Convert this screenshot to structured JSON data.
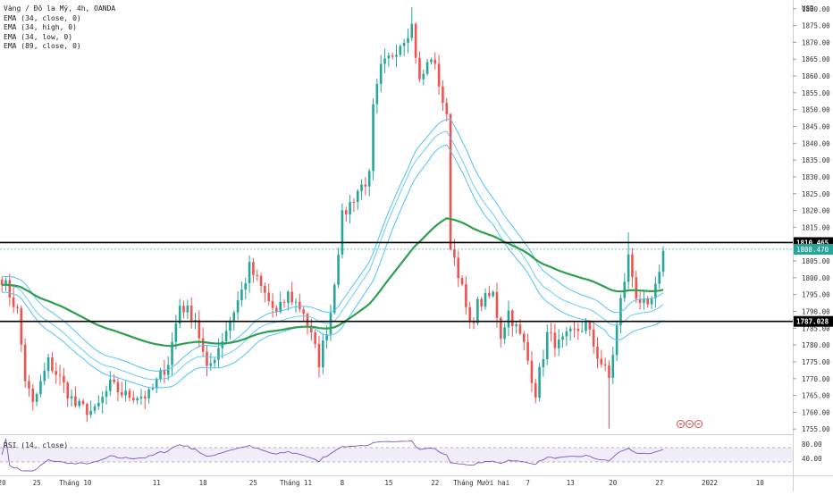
{
  "header": {
    "symbol_line": "Vàng / Đô la Mỹ, 4h, OANDA",
    "indicators": [
      "EMA (34, close, 0)",
      "EMA (34, high, 0)",
      "EMA (34, low, 0)",
      "EMA (89, close, 0)"
    ],
    "currency": "USD",
    "rsi_label": "RSI (14, close)"
  },
  "colors": {
    "up": "#26a69a",
    "down": "#ef5350",
    "ema_fast": "#4fc3f7",
    "ema_slow": "#2e9e4f",
    "rsi": "#7e57c2",
    "level_line": "#000000"
  },
  "icons": [
    "alert-circle-icon",
    "alert-circle-icon",
    "alert-circle-icon"
  ],
  "chart_data": {
    "type": "candlestick",
    "y_axis": {
      "ticks": [
        1755,
        1760,
        1765,
        1770,
        1775,
        1780,
        1785,
        1790,
        1795,
        1800,
        1805,
        1810,
        1815,
        1820,
        1825,
        1830,
        1835,
        1840,
        1845,
        1850,
        1855,
        1860,
        1865,
        1870,
        1875,
        1880
      ],
      "ylim": [
        1754,
        1881
      ]
    },
    "x_axis": {
      "labels": [
        "20",
        "25",
        "Tháng 10",
        "11",
        "18",
        "25",
        "Tháng 11",
        "8",
        "15",
        "22",
        "Tháng Mười hai",
        "7",
        "13",
        "20",
        "27",
        "2022",
        "10"
      ],
      "label_positions_index": [
        0,
        9,
        19,
        40,
        52,
        65,
        76,
        88,
        100,
        112,
        124,
        136,
        147,
        158,
        170,
        183,
        196
      ],
      "n_slots": 205
    },
    "level_lines": [
      {
        "value": 1810.465,
        "label": "1810.465"
      },
      {
        "value": 1787.028,
        "label": "1787.028"
      }
    ],
    "last_price": {
      "value": 1808.47,
      "label": "1808.470"
    },
    "rsi": {
      "ylim": [
        0,
        100
      ],
      "bands": [
        30,
        70
      ],
      "ticks": [
        80,
        40
      ]
    },
    "anchors": [
      [
        0,
        1800
      ],
      [
        4,
        1790
      ],
      [
        6,
        1770
      ],
      [
        8,
        1762
      ],
      [
        12,
        1775
      ],
      [
        15,
        1770
      ],
      [
        19,
        1762
      ],
      [
        24,
        1760
      ],
      [
        28,
        1768
      ],
      [
        32,
        1765
      ],
      [
        38,
        1765
      ],
      [
        43,
        1775
      ],
      [
        46,
        1792
      ],
      [
        50,
        1788
      ],
      [
        53,
        1772
      ],
      [
        57,
        1782
      ],
      [
        62,
        1796
      ],
      [
        64,
        1803
      ],
      [
        67,
        1797
      ],
      [
        71,
        1789
      ],
      [
        74,
        1795
      ],
      [
        78,
        1790
      ],
      [
        82,
        1775
      ],
      [
        85,
        1790
      ],
      [
        88,
        1818
      ],
      [
        92,
        1826
      ],
      [
        95,
        1830
      ],
      [
        96,
        1850
      ],
      [
        98,
        1862
      ],
      [
        100,
        1865
      ],
      [
        103,
        1870
      ],
      [
        106,
        1875
      ],
      [
        108,
        1858
      ],
      [
        111,
        1866
      ],
      [
        113,
        1858
      ],
      [
        115,
        1847
      ],
      [
        116,
        1810
      ],
      [
        118,
        1802
      ],
      [
        121,
        1785
      ],
      [
        123,
        1792
      ],
      [
        127,
        1795
      ],
      [
        129,
        1783
      ],
      [
        131,
        1790
      ],
      [
        135,
        1780
      ],
      [
        138,
        1766
      ],
      [
        141,
        1783
      ],
      [
        144,
        1780
      ],
      [
        147,
        1783
      ],
      [
        151,
        1786
      ],
      [
        154,
        1777
      ],
      [
        157,
        1770
      ],
      [
        160,
        1793
      ],
      [
        162,
        1806
      ],
      [
        164,
        1795
      ],
      [
        167,
        1790
      ],
      [
        170,
        1800
      ],
      [
        171,
        1808
      ]
    ]
  }
}
